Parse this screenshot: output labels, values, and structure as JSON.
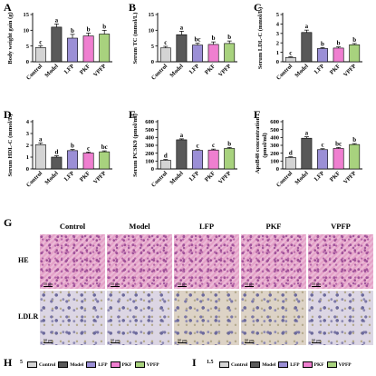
{
  "colors": {
    "Control": "#d4d4d4",
    "Model": "#595959",
    "LFP": "#9b8fd6",
    "PKF": "#ef7fd0",
    "VPFP": "#a8d27e"
  },
  "chart_data": [
    {
      "panel": "A",
      "type": "bar",
      "ylabel": "Body weight gain (g)",
      "categories": [
        "Control",
        "Model",
        "LFP",
        "PKF",
        "VPFP"
      ],
      "values": [
        4.5,
        11,
        7.5,
        8.2,
        8.8
      ],
      "errors": [
        0.6,
        1.0,
        1.2,
        0.9,
        1.2
      ],
      "sig": [
        "c",
        "a",
        "b",
        "b",
        "b"
      ],
      "ylim": [
        0,
        15
      ],
      "yticks": [
        0,
        5,
        10,
        15
      ]
    },
    {
      "panel": "B",
      "type": "bar",
      "ylabel": "Serum TC (mmol/L)",
      "categories": [
        "Control",
        "Model",
        "LFP",
        "PKF",
        "VPFP"
      ],
      "values": [
        4.4,
        8.6,
        5.3,
        5.5,
        5.8
      ],
      "errors": [
        0.5,
        1.1,
        0.6,
        0.8,
        0.8
      ],
      "sig": [
        "c",
        "a",
        "bc",
        "b",
        "b"
      ],
      "ylim": [
        0,
        15
      ],
      "yticks": [
        0,
        5,
        10,
        15
      ]
    },
    {
      "panel": "C",
      "type": "bar",
      "ylabel": "Serum LDL-C (mmol/L)",
      "categories": [
        "Control",
        "Model",
        "LFP",
        "PKF",
        "VPFP"
      ],
      "values": [
        0.45,
        3.1,
        1.4,
        1.45,
        1.8
      ],
      "errors": [
        0.08,
        0.25,
        0.1,
        0.12,
        0.13
      ],
      "sig": [
        "c",
        "a",
        "b",
        "b",
        "b"
      ],
      "ylim": [
        0,
        5
      ],
      "yticks": [
        0,
        1,
        2,
        3,
        4,
        5
      ]
    },
    {
      "panel": "D",
      "type": "bar",
      "ylabel": "Serum HDL-C (mmol/L)",
      "categories": [
        "Control",
        "Model",
        "LFP",
        "PKF",
        "VPFP"
      ],
      "values": [
        2.05,
        1.0,
        1.55,
        1.35,
        1.45
      ],
      "errors": [
        0.15,
        0.12,
        0.1,
        0.08,
        0.08
      ],
      "sig": [
        "a",
        "d",
        "b",
        "c",
        "bc"
      ],
      "ylim": [
        0,
        4
      ],
      "yticks": [
        0,
        1,
        2,
        3,
        4
      ]
    },
    {
      "panel": "E",
      "type": "bar",
      "ylabel": "Serum PCSK9 (pmol/ml)",
      "categories": [
        "Control",
        "Model",
        "LFP",
        "PKF",
        "VPFP"
      ],
      "values": [
        110,
        370,
        235,
        240,
        260
      ],
      "errors": [
        10,
        12,
        12,
        12,
        12
      ],
      "sig": [
        "d",
        "a",
        "c",
        "c",
        "b"
      ],
      "ylim": [
        0,
        600
      ],
      "yticks": [
        0,
        100,
        200,
        300,
        400,
        500,
        600
      ]
    },
    {
      "panel": "F",
      "type": "bar",
      "ylabel": "ApoB48 concentration (pmol/ml)",
      "categories": [
        "Control",
        "Model",
        "LFP",
        "PKF",
        "VPFP"
      ],
      "values": [
        145,
        390,
        245,
        260,
        310
      ],
      "errors": [
        10,
        18,
        12,
        12,
        12
      ],
      "sig": [
        "d",
        "a",
        "c",
        "bc",
        "b"
      ],
      "ylim": [
        0,
        600
      ],
      "yticks": [
        0,
        100,
        200,
        300,
        400,
        500,
        600
      ]
    }
  ],
  "micrograph": {
    "panel": "G",
    "columns": [
      "Control",
      "Model",
      "LFP",
      "PKF",
      "VPFP"
    ],
    "rows": [
      "HE",
      "LDLR"
    ],
    "scale_label": "50 μm"
  },
  "bottom": {
    "h_panel": "H",
    "h_tick": "5",
    "i_panel": "I",
    "i_tick": "1.5",
    "legend": [
      "Control",
      "Model",
      "LFP",
      "PKF",
      "VPFP"
    ]
  }
}
